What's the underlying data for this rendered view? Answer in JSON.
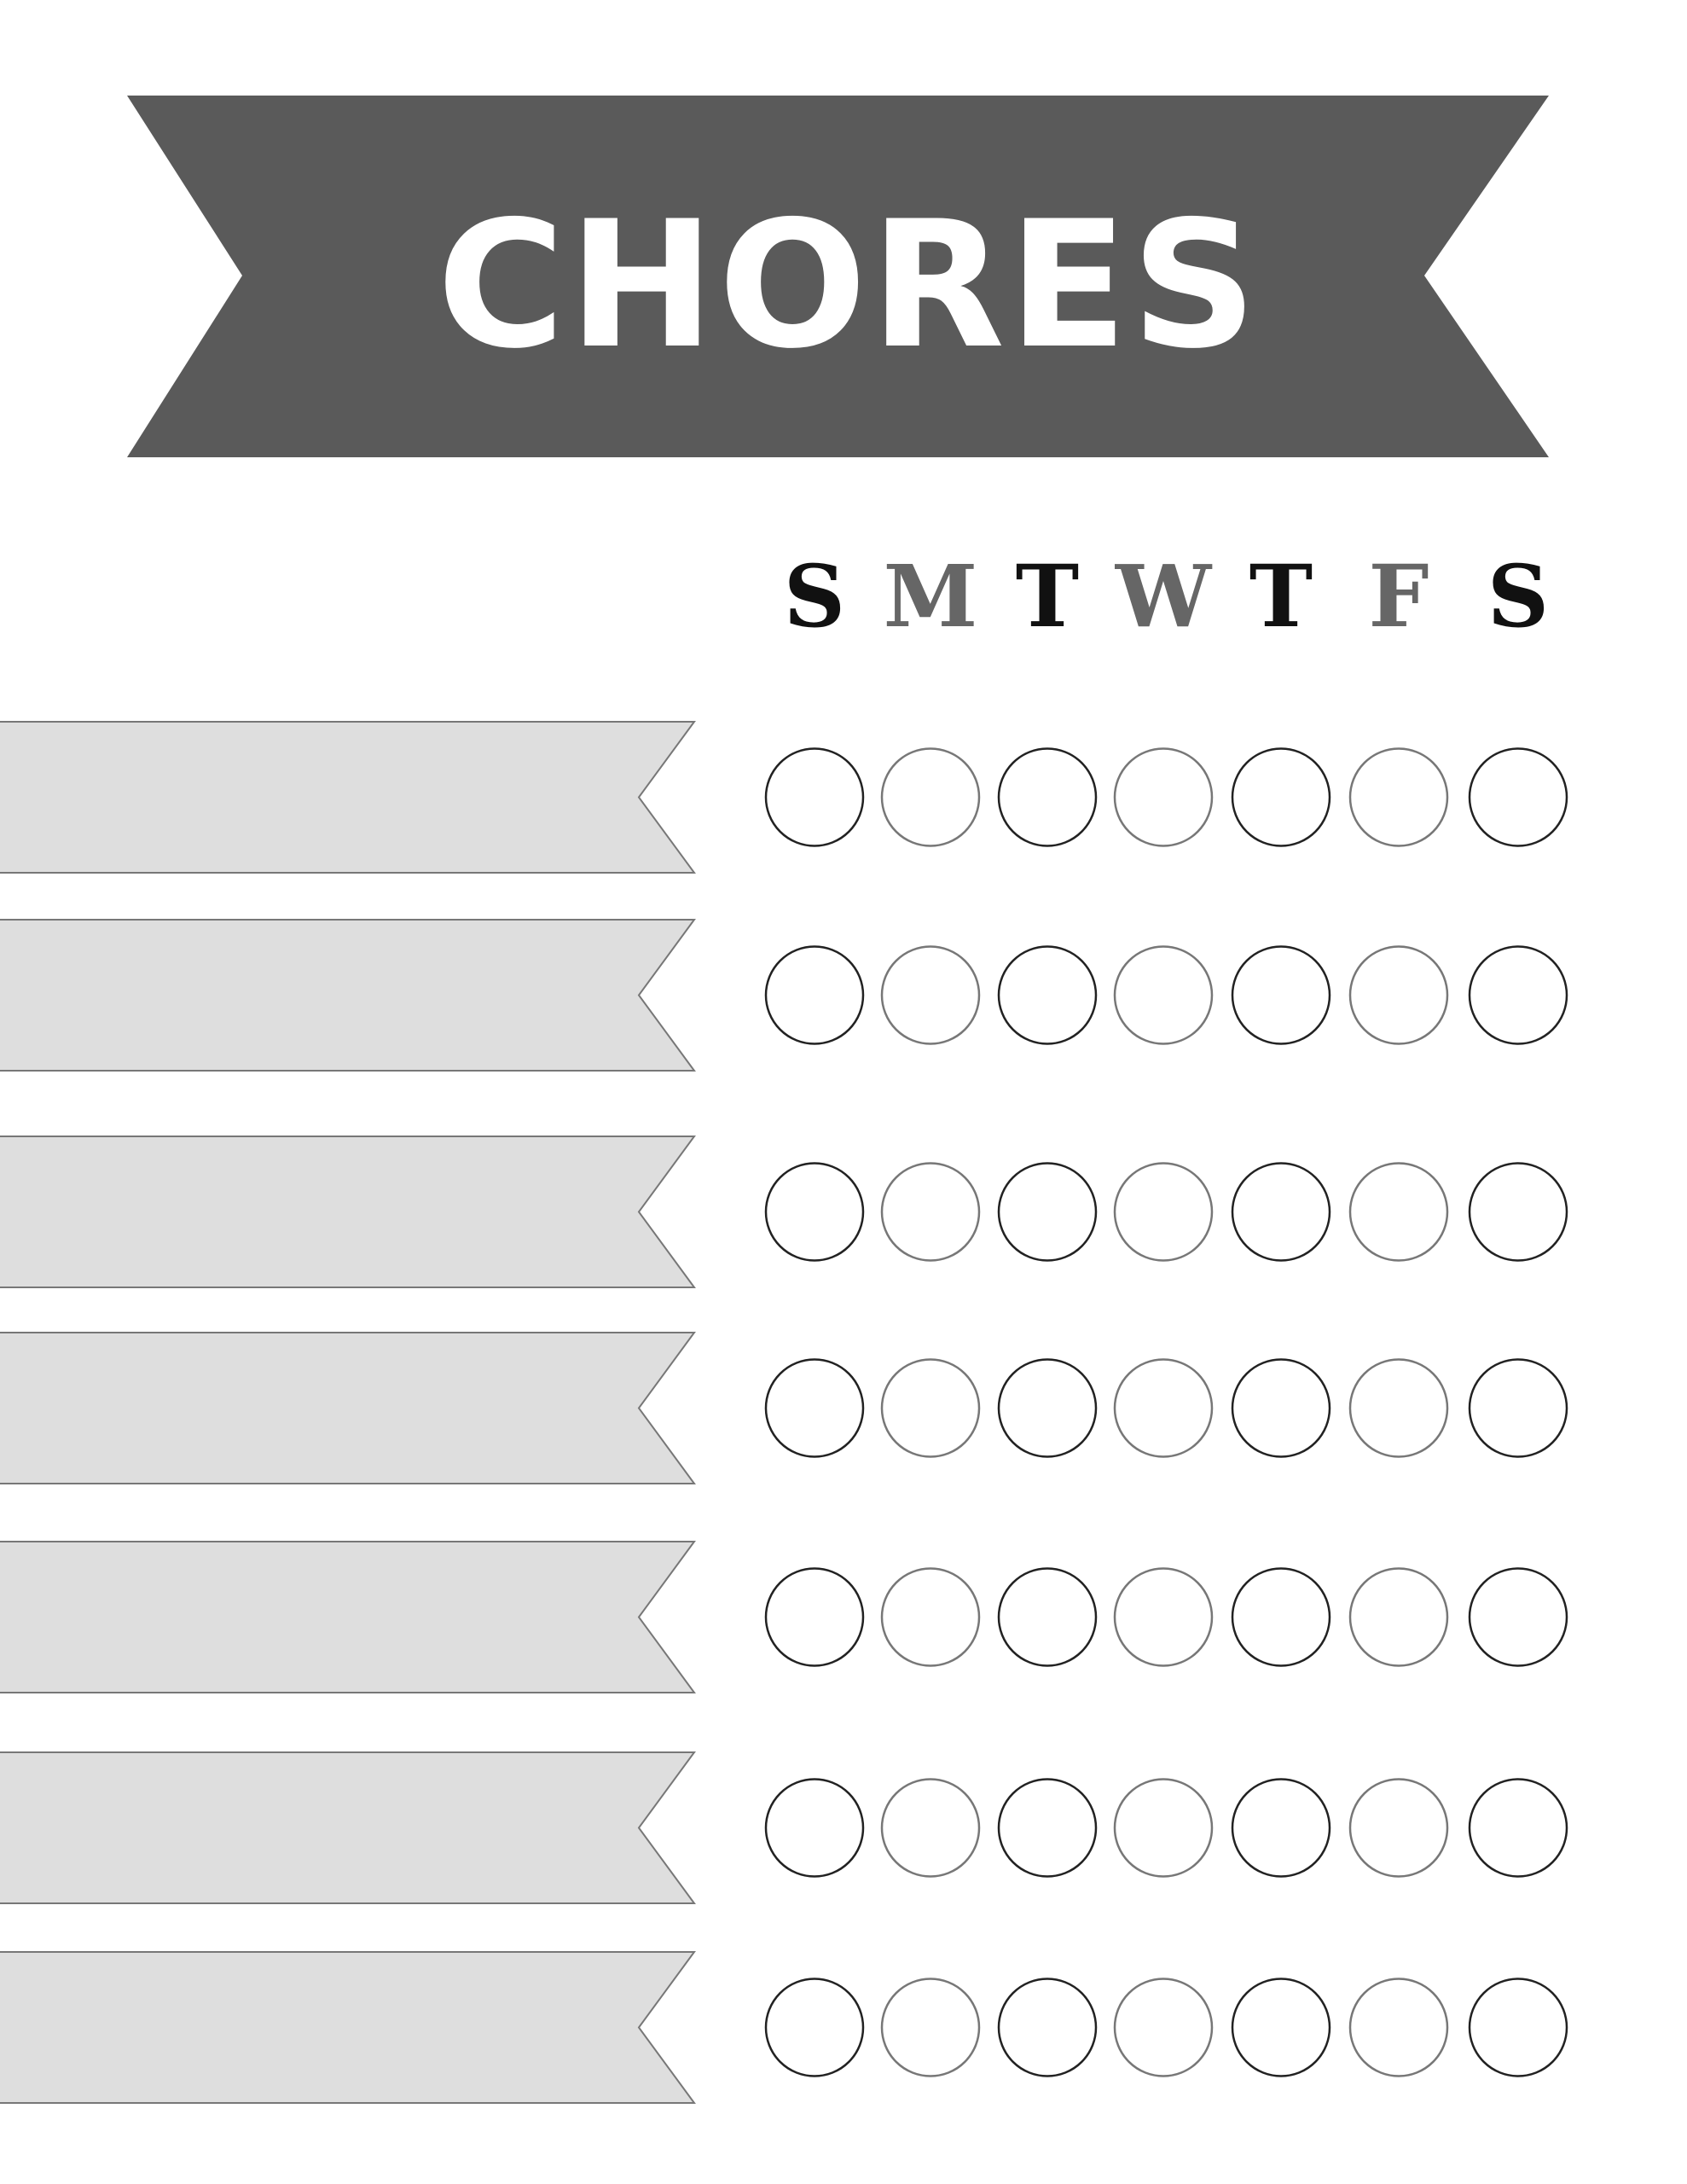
{
  "header": {
    "title": "CHORES",
    "banner_color": "#5a5a5a",
    "title_color": "#ffffff"
  },
  "days": [
    {
      "label": "S",
      "color": "#111111"
    },
    {
      "label": "M",
      "color": "#666666"
    },
    {
      "label": "T",
      "color": "#111111"
    },
    {
      "label": "W",
      "color": "#666666"
    },
    {
      "label": "T",
      "color": "#111111"
    },
    {
      "label": "F",
      "color": "#666666"
    },
    {
      "label": "S",
      "color": "#111111"
    }
  ],
  "chores": [
    {
      "label": ""
    },
    {
      "label": ""
    },
    {
      "label": ""
    },
    {
      "label": ""
    },
    {
      "label": ""
    },
    {
      "label": ""
    },
    {
      "label": ""
    }
  ],
  "colors": {
    "ribbon_fill": "#dedede",
    "ribbon_stroke": "#777777",
    "circle_dark": "#222222",
    "circle_light": "#777777"
  }
}
